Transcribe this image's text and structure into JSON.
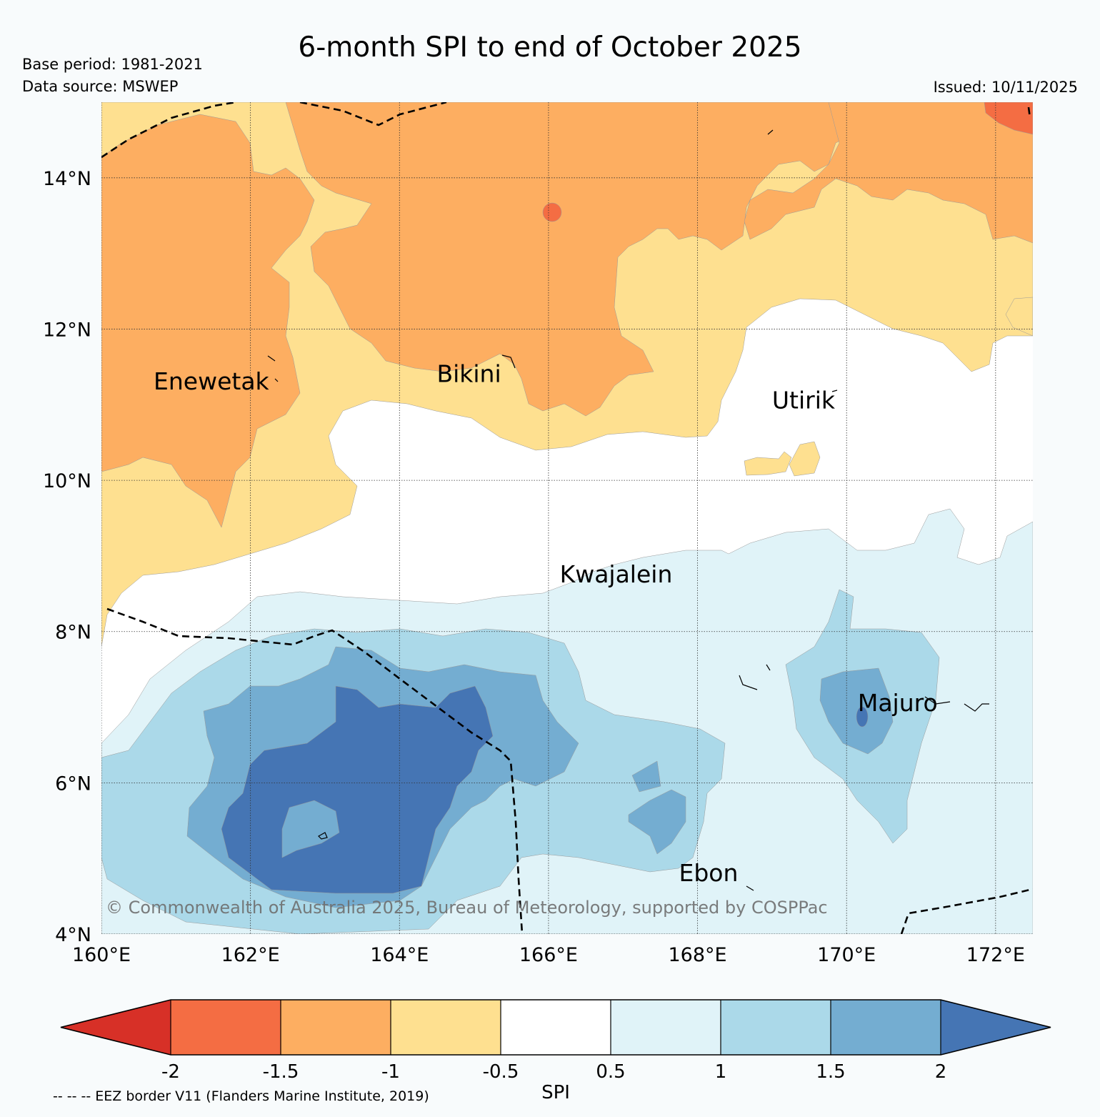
{
  "header": {
    "title": "6-month SPI to end of October 2025",
    "base_period": "Base period: 1981-2021",
    "data_source": "Data source: MSWEP",
    "issued": "Issued: 10/11/2025"
  },
  "map": {
    "lon_range": [
      160,
      172.5
    ],
    "lat_range": [
      4,
      15
    ],
    "lon_ticks": [
      {
        "value": 160,
        "label": "160°E"
      },
      {
        "value": 162,
        "label": "162°E"
      },
      {
        "value": 164,
        "label": "164°E"
      },
      {
        "value": 166,
        "label": "166°E"
      },
      {
        "value": 168,
        "label": "168°E"
      },
      {
        "value": 170,
        "label": "170°E"
      },
      {
        "value": 172,
        "label": "172°E"
      }
    ],
    "lat_ticks": [
      {
        "value": 4,
        "label": "4°N"
      },
      {
        "value": 6,
        "label": "6°N"
      },
      {
        "value": 8,
        "label": "8°N"
      },
      {
        "value": 10,
        "label": "10°N"
      },
      {
        "value": 12,
        "label": "12°N"
      },
      {
        "value": 14,
        "label": "14°N"
      }
    ],
    "places": [
      {
        "name": "Enewetak",
        "lon": 160.7,
        "lat": 11.2
      },
      {
        "name": "Bikini",
        "lon": 164.5,
        "lat": 11.3
      },
      {
        "name": "Utirik",
        "lon": 169.0,
        "lat": 10.95
      },
      {
        "name": "Kwajalein",
        "lon": 166.15,
        "lat": 8.65
      },
      {
        "name": "Majuro",
        "lon": 170.15,
        "lat": 6.95
      },
      {
        "name": "Ebon",
        "lon": 167.75,
        "lat": 4.7
      }
    ],
    "copyright": "© Commonwealth of Australia 2025, Bureau of Meteorology, supported by COSPPac"
  },
  "legend": {
    "label": "SPI",
    "ticks": [
      "-2",
      "-1.5",
      "-1",
      "-0.5",
      "0.5",
      "1",
      "1.5",
      "2"
    ],
    "colors": [
      "#d73027",
      "#f46d43",
      "#fdae61",
      "#fee090",
      "#ffffff",
      "#e0f3f8",
      "#abd9e9",
      "#74add1",
      "#4575b4"
    ],
    "eez_note": "-- -- -- EEZ border V11 (Flanders Marine Institute, 2019)"
  }
}
